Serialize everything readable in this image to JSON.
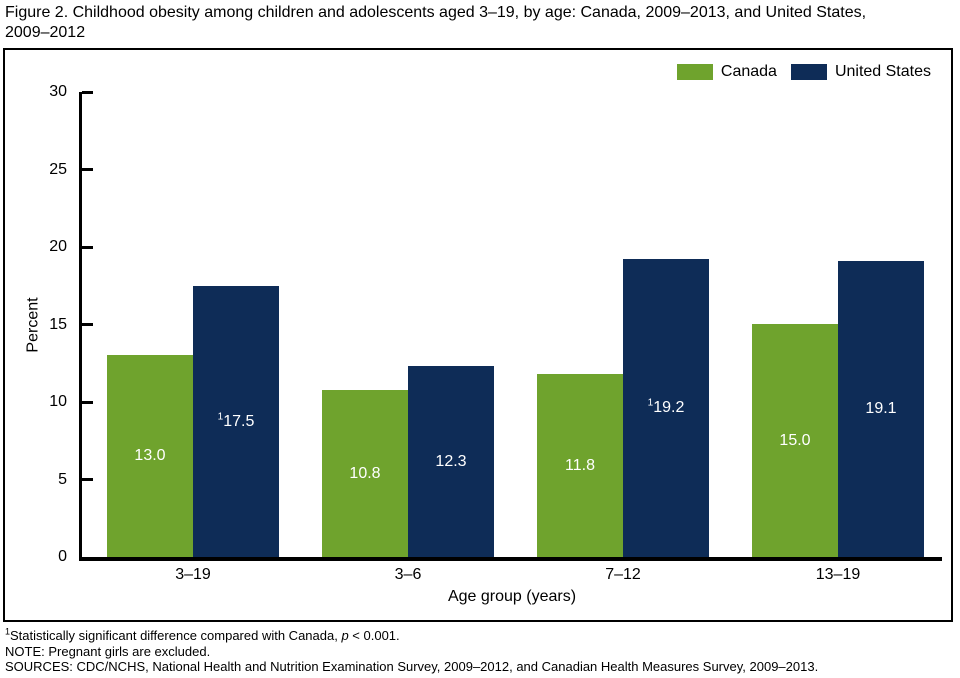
{
  "title": {
    "line1": "Figure 2. Childhood obesity among children and adolescents aged 3–19, by age: Canada, 2009–2013, and United States,",
    "line2": "2009–2012"
  },
  "chart_data": {
    "type": "bar",
    "title": "Figure 2. Childhood obesity among children and adolescents aged 3–19, by age: Canada, 2009–2013, and United States, 2009–2012",
    "categories": [
      "3–19",
      "3–6",
      "7–12",
      "13–19"
    ],
    "series": [
      {
        "name": "Canada",
        "color": "#6FA32D",
        "values": [
          13.0,
          10.8,
          11.8,
          15.0
        ],
        "bar_labels": [
          "13.0",
          "10.8",
          "11.8",
          "15.0"
        ],
        "bar_label_sups": [
          "",
          "",
          "",
          ""
        ]
      },
      {
        "name": "United States",
        "color": "#0E2C57",
        "values": [
          17.5,
          12.3,
          19.2,
          19.1
        ],
        "bar_labels": [
          "17.5",
          "12.3",
          "19.2",
          "19.1"
        ],
        "bar_label_sups": [
          "1",
          "",
          "1",
          ""
        ]
      }
    ],
    "xlabel": "Age group (years)",
    "ylabel": "Percent",
    "ylim": [
      0,
      30
    ],
    "yticks": [
      0,
      5,
      10,
      15,
      20,
      25,
      30
    ],
    "grid": false,
    "legend_position": "top-right-inside",
    "bar_label_color": "#ffffff"
  },
  "footnotes": {
    "significance": {
      "sup": "1",
      "text": "Statistically significant difference compared with Canada, ",
      "p_italic": "p",
      "tail": " < 0.001."
    },
    "note": "NOTE: Pregnant girls are excluded.",
    "sources": "SOURCES: CDC/NCHS, National Health and Nutrition Examination Survey, 2009–2012, and Canadian Health Measures Survey, 2009–2013."
  }
}
